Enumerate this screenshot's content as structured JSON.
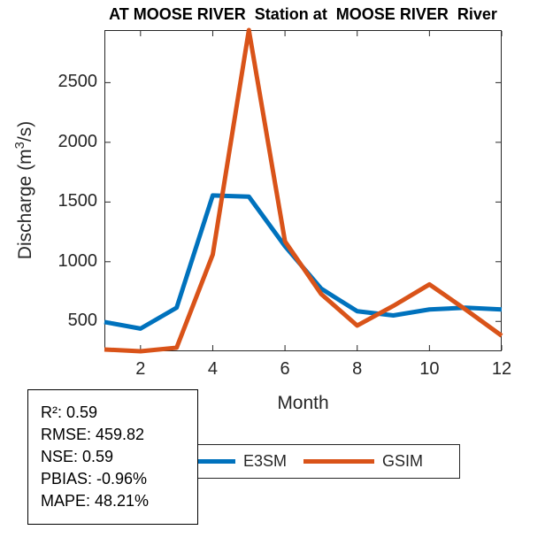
{
  "title": "AT MOOSE RIVER  Station at  MOOSE RIVER  River",
  "chart_data": {
    "type": "line",
    "x": [
      1,
      2,
      3,
      4,
      5,
      6,
      7,
      8,
      9,
      10,
      11,
      12
    ],
    "series": [
      {
        "name": "E3SM",
        "color": "#0072BD",
        "values": [
          495,
          440,
          615,
          1555,
          1545,
          1130,
          775,
          585,
          550,
          600,
          615,
          600
        ]
      },
      {
        "name": "GSIM",
        "color": "#D95319",
        "values": [
          265,
          250,
          280,
          1060,
          2940,
          1170,
          730,
          465,
          630,
          810,
          600,
          380
        ]
      }
    ],
    "xlabel": "Month",
    "ylabel": "Discharge (m³/s)",
    "ylabel_parts": {
      "prefix": "Discharge (m",
      "sup": "3",
      "suffix": "/s)"
    },
    "xlim": [
      1,
      12
    ],
    "ylim": [
      250,
      2940
    ],
    "xticks": [
      2,
      4,
      6,
      8,
      10,
      12
    ],
    "yticks": [
      500,
      1000,
      1500,
      2000,
      2500
    ],
    "grid": false,
    "legend_position": "below-plot-left",
    "axis_color": "#262626",
    "line_width": 5
  },
  "legend": {
    "items": [
      {
        "label": "E3SM",
        "color": "#0072BD"
      },
      {
        "label": "GSIM",
        "color": "#D95319"
      }
    ]
  },
  "stats_box": {
    "lines": [
      "R²: 0.59",
      "RMSE: 459.82",
      "NSE: 0.59",
      "PBIAS: -0.96%",
      "MAPE: 48.21%"
    ]
  }
}
